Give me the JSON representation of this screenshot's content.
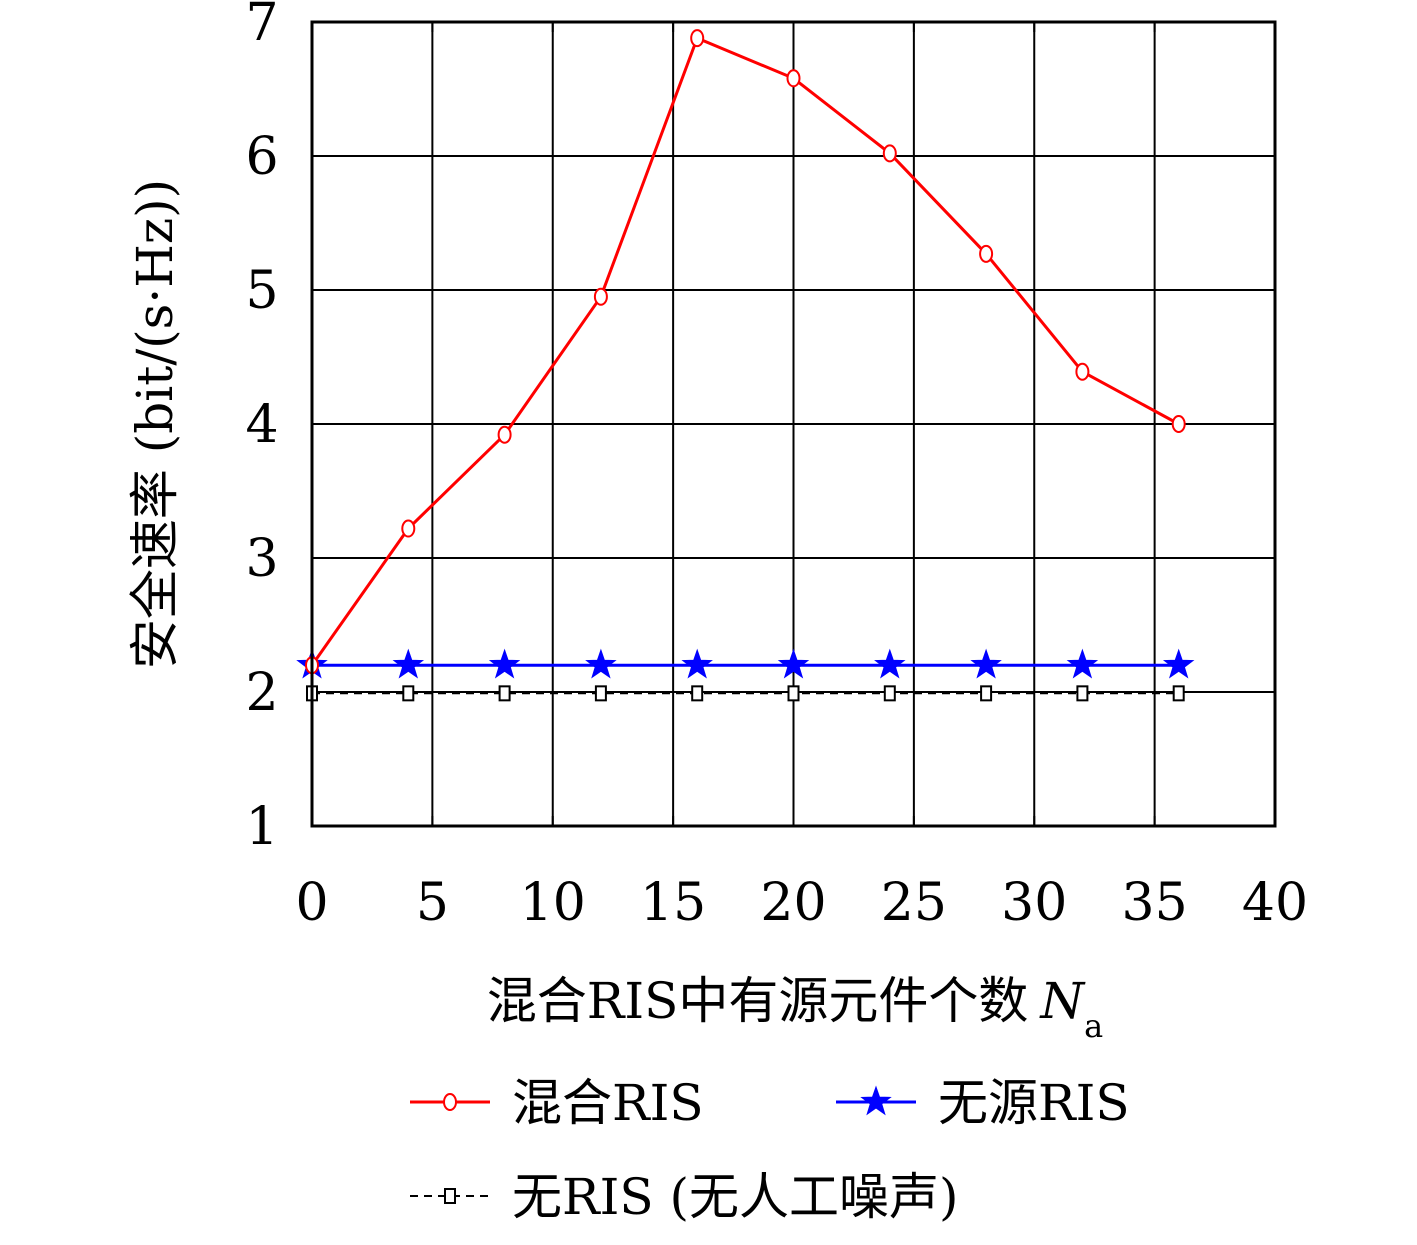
{
  "chart_data": {
    "type": "line",
    "xlabel": "混合RIS中有源元件个数",
    "xlabel_symbol": "N",
    "xlabel_subscript": "a",
    "ylabel": "安全速率 (bit/(s·Hz))",
    "xlim": [
      0,
      40
    ],
    "ylim": [
      1,
      7
    ],
    "xticks": [
      0,
      5,
      10,
      15,
      20,
      25,
      30,
      35,
      40
    ],
    "yticks": [
      1,
      2,
      3,
      4,
      5,
      6,
      7
    ],
    "grid": true,
    "legend_position": "bottom",
    "series": [
      {
        "name": "混合RIS",
        "color": "#ff0000",
        "marker": "circle",
        "dash": "solid",
        "x": [
          0,
          4,
          8,
          12,
          16,
          20,
          24,
          28,
          32,
          36
        ],
        "y": [
          2.2,
          3.22,
          3.92,
          4.95,
          6.88,
          6.58,
          6.02,
          5.27,
          4.39,
          4.0
        ]
      },
      {
        "name": "无源RIS",
        "color": "#0000ff",
        "marker": "star",
        "dash": "solid",
        "x": [
          0,
          4,
          8,
          12,
          16,
          20,
          24,
          28,
          32,
          36
        ],
        "y": [
          2.2,
          2.2,
          2.2,
          2.2,
          2.2,
          2.2,
          2.2,
          2.2,
          2.2,
          2.2
        ]
      },
      {
        "name": "无RIS (无人工噪声)",
        "color": "#000000",
        "marker": "square",
        "dash": "dashed",
        "x": [
          0,
          4,
          8,
          12,
          16,
          20,
          24,
          28,
          32,
          36
        ],
        "y": [
          1.99,
          1.99,
          1.99,
          1.99,
          1.99,
          1.99,
          1.99,
          1.99,
          1.99,
          1.99
        ]
      }
    ]
  }
}
